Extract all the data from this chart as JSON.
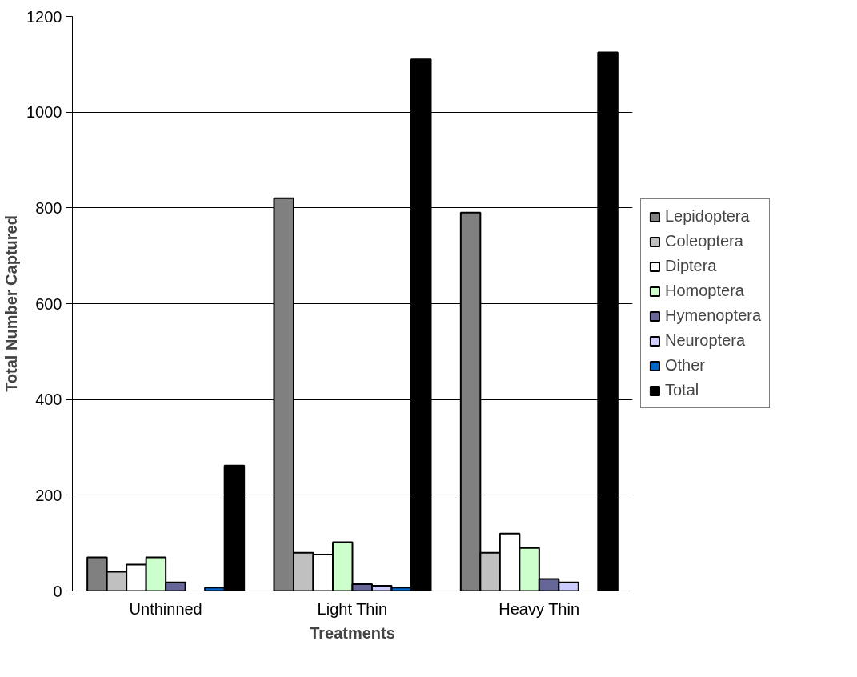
{
  "chart_data": {
    "type": "bar",
    "xlabel": "Treatments",
    "ylabel": "Total Number Captured",
    "categories": [
      "Unthinned",
      "Light Thin",
      "Heavy Thin"
    ],
    "series": [
      {
        "name": "Lepidoptera",
        "color": "#808080",
        "values": [
          70,
          820,
          790
        ]
      },
      {
        "name": "Coleoptera",
        "color": "#c0c0c0",
        "values": [
          40,
          80,
          80
        ]
      },
      {
        "name": "Diptera",
        "color": "#ffffff",
        "values": [
          55,
          76,
          120
        ]
      },
      {
        "name": "Homoptera",
        "color": "#ccffcc",
        "values": [
          70,
          102,
          90
        ]
      },
      {
        "name": "Hymenoptera",
        "color": "#666699",
        "values": [
          18,
          14,
          25
        ]
      },
      {
        "name": "Neuroptera",
        "color": "#ccccff",
        "values": [
          null,
          11,
          18
        ]
      },
      {
        "name": "Other",
        "color": "#0066cc",
        "values": [
          7,
          7,
          null
        ]
      },
      {
        "name": "Total",
        "color": "#000000",
        "values": [
          262,
          1110,
          1125
        ]
      }
    ],
    "ylim": [
      0,
      1200
    ],
    "yticks": [
      0,
      200,
      400,
      600,
      800,
      1000,
      1200
    ],
    "grid": "y",
    "legend": "right"
  }
}
